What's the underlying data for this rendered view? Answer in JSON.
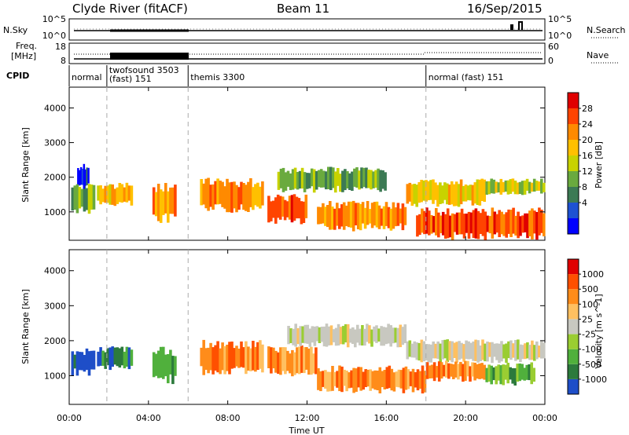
{
  "header": {
    "station": "Clyde River (fitACF)",
    "beam": "Beam 11",
    "date": "16/Sep/2015"
  },
  "nsky_panel": {
    "left_label": "N.Sky",
    "left_ticks": [
      "10^5",
      "10^0"
    ],
    "right_ticks": [
      "10^5",
      "10^0"
    ],
    "right_label": "N.Search"
  },
  "freq_panel": {
    "left_label_1": "Freq.",
    "left_label_2": "[MHz]",
    "left_ticks": [
      "18",
      "8"
    ],
    "right_ticks": [
      "60",
      "0"
    ],
    "right_label": "Nave"
  },
  "cpid": {
    "label": "CPID",
    "modes": [
      {
        "lines": [
          "normal"
        ],
        "start_hour": 0
      },
      {
        "lines": [
          "twofsound 3503",
          "(fast) 151"
        ],
        "start_hour": 1.9
      },
      {
        "lines": [
          "themis 3300"
        ],
        "start_hour": 6.0
      },
      {
        "lines": [
          "normal (fast) 151"
        ],
        "start_hour": 18.0
      }
    ]
  },
  "time_axis": {
    "label": "Time UT",
    "ticks": [
      "00:00",
      "04:00",
      "08:00",
      "12:00",
      "16:00",
      "20:00",
      "00:00"
    ],
    "range_hours": [
      0,
      24
    ],
    "mode_change_hours": [
      1.9,
      6.0,
      18.0
    ]
  },
  "chart_data": [
    {
      "type": "heatmap",
      "quantity": "power",
      "ylabel": "Slant Range [km]",
      "ylim": [
        180,
        4600
      ],
      "yticks": [
        "4000",
        "3000",
        "2000",
        "1000"
      ],
      "colorbar_label": "Power [dB]",
      "colorbar_ticks": [
        "28",
        "24",
        "20",
        "16",
        "12",
        "8",
        "4"
      ],
      "colorbar_colors": [
        "#0000ff",
        "#1e52d2",
        "#3c7a54",
        "#6aaa3e",
        "#c8d200",
        "#ffc000",
        "#ff8a00",
        "#ff4400",
        "#e00000"
      ],
      "regions": [
        {
          "t0": 0.1,
          "t1": 1.3,
          "r0": 1050,
          "r1": 1700,
          "level": 3
        },
        {
          "t0": 0.4,
          "t1": 1.0,
          "r0": 1750,
          "r1": 2300,
          "level": 1
        },
        {
          "t0": 1.4,
          "t1": 3.2,
          "r0": 1250,
          "r1": 1750,
          "level": 5
        },
        {
          "t0": 4.2,
          "t1": 5.4,
          "r0": 800,
          "r1": 1700,
          "level": 6
        },
        {
          "t0": 6.6,
          "t1": 9.8,
          "r0": 1100,
          "r1": 1850,
          "level": 6
        },
        {
          "t0": 10.0,
          "t1": 12.0,
          "r0": 750,
          "r1": 1400,
          "level": 7
        },
        {
          "t0": 10.5,
          "t1": 16.0,
          "r0": 1650,
          "r1": 2200,
          "level": 3
        },
        {
          "t0": 12.5,
          "t1": 17.0,
          "r0": 550,
          "r1": 1200,
          "level": 6
        },
        {
          "t0": 17.0,
          "t1": 21.0,
          "r0": 1250,
          "r1": 1850,
          "level": 5
        },
        {
          "t0": 17.5,
          "t1": 24.0,
          "r0": 300,
          "r1": 1000,
          "level": 7
        },
        {
          "t0": 21.0,
          "t1": 24.0,
          "r0": 1550,
          "r1": 1900,
          "level": 4
        }
      ]
    },
    {
      "type": "heatmap",
      "quantity": "velocity",
      "ylabel": "Slant Range [km]",
      "ylim": [
        180,
        4600
      ],
      "yticks": [
        "4000",
        "3000",
        "2000",
        "1000"
      ],
      "colorbar_label": "Velocity [m s^-1]",
      "colorbar_ticks": [
        "1000",
        "500",
        "100",
        "25",
        "-25",
        "-100",
        "-500",
        "-1000"
      ],
      "colorbar_colors": [
        "#1e4ec8",
        "#2c7a3c",
        "#50b03c",
        "#9acd32",
        "#c8c8c0",
        "#ffc060",
        "#ff8c1a",
        "#ff5000",
        "#e00000"
      ],
      "regions": [
        {
          "t0": 0.1,
          "t1": 1.3,
          "r0": 1100,
          "r1": 1700,
          "level": 0
        },
        {
          "t0": 1.4,
          "t1": 3.2,
          "r0": 1250,
          "r1": 1750,
          "level": 1
        },
        {
          "t0": 4.2,
          "t1": 5.4,
          "r0": 900,
          "r1": 1700,
          "level": 2
        },
        {
          "t0": 6.6,
          "t1": 9.8,
          "r0": 1150,
          "r1": 1900,
          "level": 6
        },
        {
          "t0": 10.0,
          "t1": 12.5,
          "r0": 1100,
          "r1": 1750,
          "level": 6
        },
        {
          "t0": 11.0,
          "t1": 17.0,
          "r0": 1900,
          "r1": 2400,
          "level": 4
        },
        {
          "t0": 12.5,
          "t1": 18.0,
          "r0": 600,
          "r1": 1200,
          "level": 6
        },
        {
          "t0": 17.0,
          "t1": 24.0,
          "r0": 1450,
          "r1": 1950,
          "level": 4
        },
        {
          "t0": 18.0,
          "t1": 21.0,
          "r0": 900,
          "r1": 1350,
          "level": 6
        },
        {
          "t0": 21.0,
          "t1": 23.5,
          "r0": 800,
          "r1": 1300,
          "level": 2
        }
      ]
    }
  ]
}
